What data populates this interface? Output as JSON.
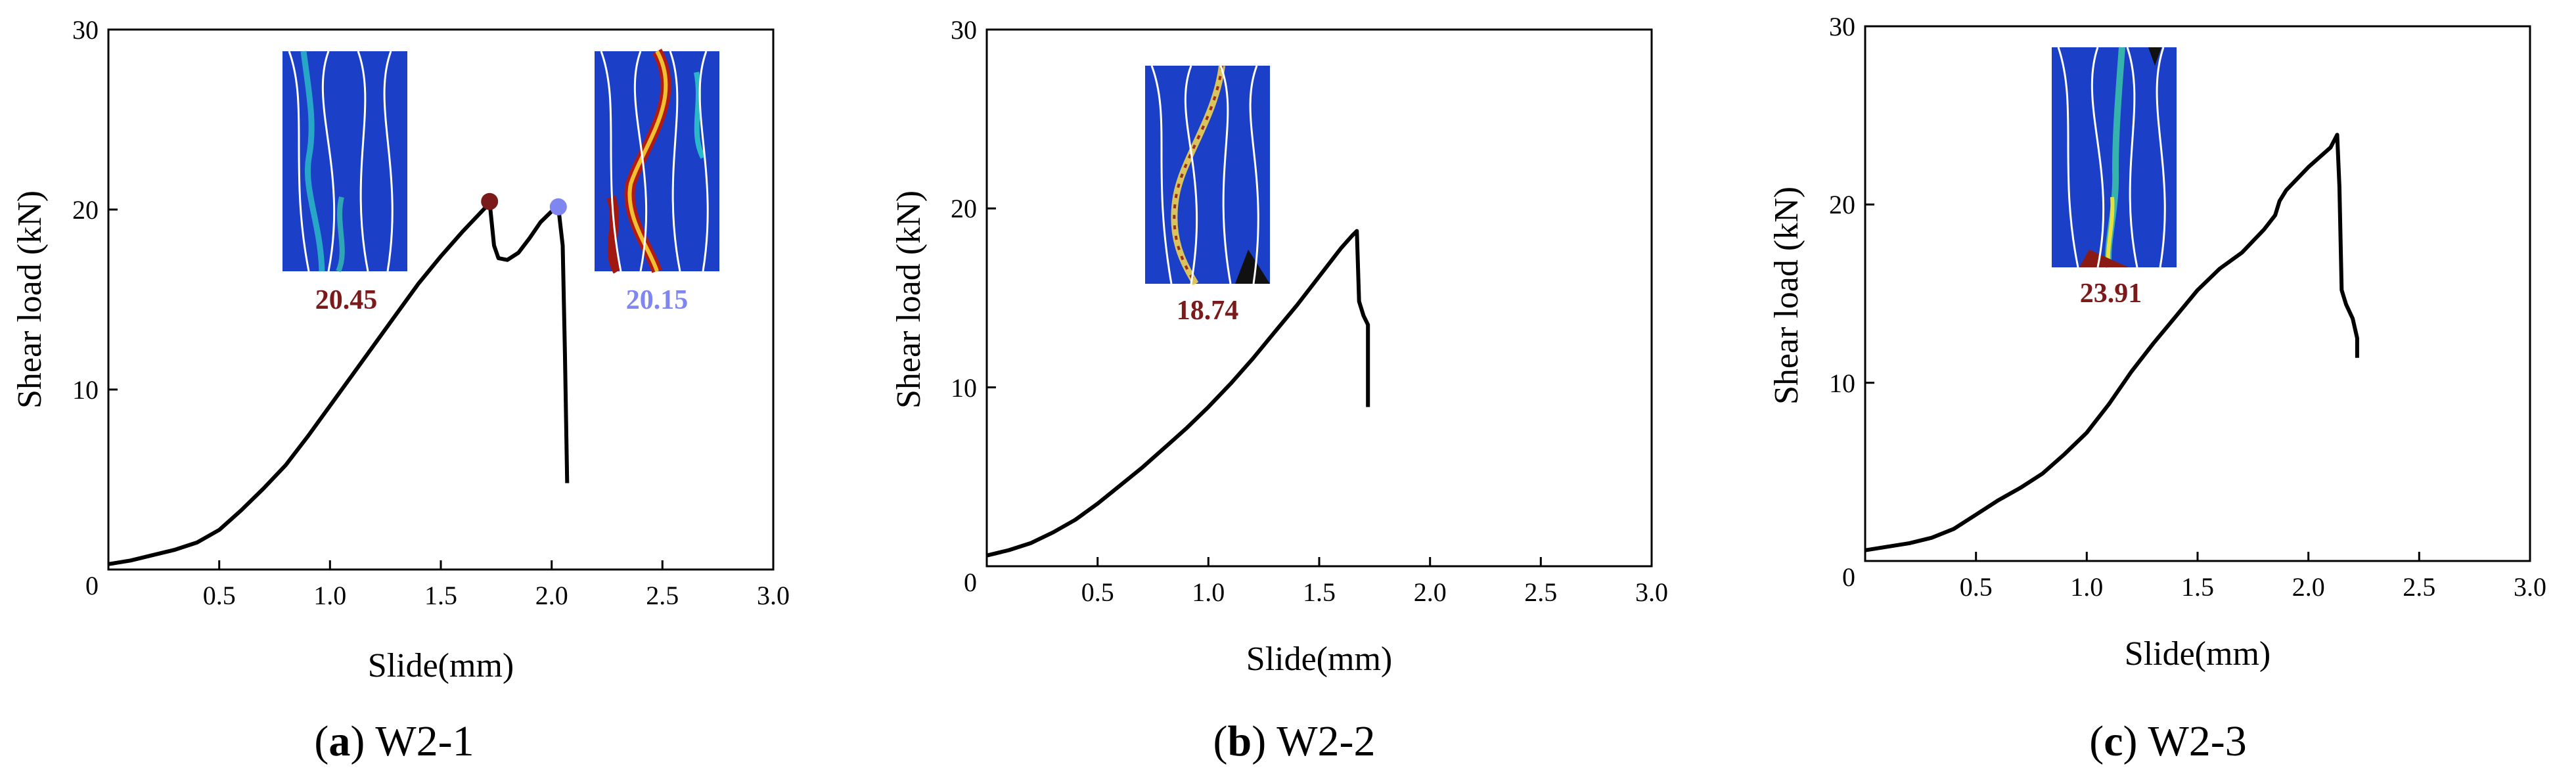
{
  "chart_data": [
    {
      "type": "line",
      "caption_letter": "a",
      "caption_open": "(",
      "caption_close": ")",
      "caption_name": "W2-1",
      "xlabel": "Slide(mm)",
      "ylabel": "Shear load (kN)",
      "xlim": [
        0,
        3.0
      ],
      "ylim": [
        0,
        30
      ],
      "x_ticks": [
        "0.5",
        "1.0",
        "1.5",
        "2.0",
        "2.5",
        "3.0"
      ],
      "y_ticks": [
        "10",
        "20",
        "30"
      ],
      "origin_label": "0",
      "series": [
        {
          "name": "W2-1",
          "color": "#000000",
          "x": [
            0,
            0.1,
            0.2,
            0.3,
            0.4,
            0.5,
            0.6,
            0.7,
            0.8,
            0.9,
            1.0,
            1.1,
            1.2,
            1.3,
            1.4,
            1.5,
            1.6,
            1.7,
            1.72,
            1.74,
            1.76,
            1.8,
            1.85,
            1.9,
            1.95,
            2.0,
            2.03,
            2.05,
            2.06,
            2.07
          ],
          "y": [
            0.3,
            0.5,
            0.8,
            1.1,
            1.5,
            2.2,
            3.3,
            4.5,
            5.8,
            7.4,
            9.1,
            10.8,
            12.5,
            14.2,
            15.9,
            17.4,
            18.8,
            20.1,
            20.45,
            18.0,
            17.3,
            17.2,
            17.6,
            18.4,
            19.3,
            19.9,
            20.15,
            18.0,
            12.0,
            4.8
          ]
        }
      ],
      "markers": [
        {
          "x": 1.72,
          "y": 20.45,
          "color": "#7a1a1a"
        },
        {
          "x": 2.03,
          "y": 20.15,
          "color": "#7f86f0"
        }
      ],
      "annotations": [
        {
          "text": "20.45",
          "color": "#7a1a1a"
        },
        {
          "text": "20.15",
          "color": "#7f86f0"
        }
      ]
    },
    {
      "type": "line",
      "caption_letter": "b",
      "caption_open": "(",
      "caption_close": ")",
      "caption_name": "W2-2",
      "xlabel": "Slide(mm)",
      "ylabel": "Shear load (kN)",
      "xlim": [
        0,
        3.0
      ],
      "ylim": [
        0,
        30
      ],
      "x_ticks": [
        "0.5",
        "1.0",
        "1.5",
        "2.0",
        "2.5",
        "3.0"
      ],
      "y_ticks": [
        "10",
        "20",
        "30"
      ],
      "origin_label": "0",
      "series": [
        {
          "name": "W2-2",
          "color": "#000000",
          "x": [
            0,
            0.1,
            0.2,
            0.3,
            0.4,
            0.5,
            0.6,
            0.7,
            0.8,
            0.9,
            1.0,
            1.1,
            1.2,
            1.3,
            1.4,
            1.5,
            1.6,
            1.65,
            1.67,
            1.68,
            1.7,
            1.72,
            1.72
          ],
          "y": [
            0.6,
            0.9,
            1.3,
            1.9,
            2.6,
            3.5,
            4.5,
            5.5,
            6.6,
            7.7,
            8.9,
            10.2,
            11.6,
            13.1,
            14.6,
            16.2,
            17.8,
            18.5,
            18.74,
            14.8,
            14.0,
            13.5,
            8.9
          ]
        }
      ],
      "markers": [],
      "annotations": [
        {
          "text": "18.74",
          "color": "#7a1a1a"
        }
      ]
    },
    {
      "type": "line",
      "caption_letter": "c",
      "caption_open": "(",
      "caption_close": ")",
      "caption_name": "W2-3",
      "xlabel": "Slide(mm)",
      "ylabel": "Shear load (kN)",
      "xlim": [
        0,
        3.0
      ],
      "ylim": [
        0,
        30
      ],
      "x_ticks": [
        "0.5",
        "1.0",
        "1.5",
        "2.0",
        "2.5",
        "3.0"
      ],
      "y_ticks": [
        "10",
        "20",
        "30"
      ],
      "origin_label": "0",
      "series": [
        {
          "name": "W2-3",
          "color": "#000000",
          "x": [
            0,
            0.1,
            0.2,
            0.3,
            0.4,
            0.5,
            0.6,
            0.7,
            0.8,
            0.9,
            1.0,
            1.1,
            1.2,
            1.3,
            1.4,
            1.5,
            1.6,
            1.7,
            1.8,
            1.85,
            1.87,
            1.9,
            2.0,
            2.1,
            2.13,
            2.14,
            2.15,
            2.17,
            2.2,
            2.22,
            2.22
          ],
          "y": [
            0.6,
            0.8,
            1.0,
            1.3,
            1.8,
            2.6,
            3.4,
            4.1,
            4.9,
            6.0,
            7.2,
            8.8,
            10.6,
            12.2,
            13.7,
            15.2,
            16.4,
            17.3,
            18.6,
            19.4,
            20.2,
            20.8,
            22.1,
            23.2,
            23.91,
            21.0,
            15.2,
            14.4,
            13.6,
            12.5,
            11.4
          ]
        }
      ],
      "markers": [],
      "annotations": [
        {
          "text": "23.91",
          "color": "#7a1a1a"
        }
      ]
    }
  ]
}
